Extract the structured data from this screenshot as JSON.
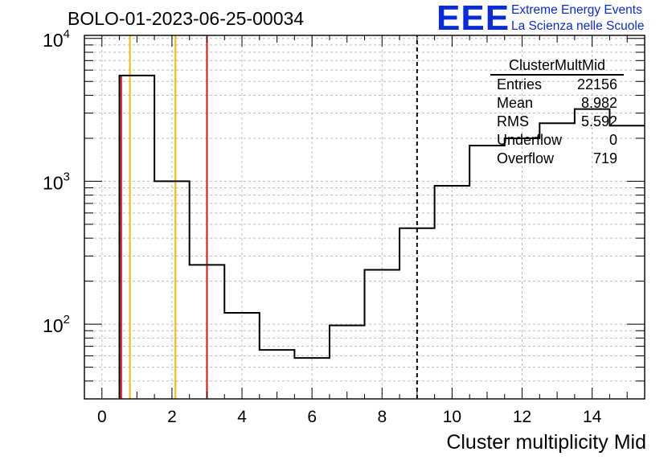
{
  "title": "BOLO-01-2023-06-25-00034",
  "logo": {
    "mark": "EEE",
    "line1": "Extreme Energy Events",
    "line2": "La Scienza nelle Scuole",
    "color": "#0a2bd8"
  },
  "stats": {
    "name": "ClusterMultMid",
    "rows": [
      {
        "label": "Entries",
        "value": "22156"
      },
      {
        "label": "Mean",
        "value": "8.982"
      },
      {
        "label": "RMS",
        "value": "5.592"
      },
      {
        "label": "Underflow",
        "value": "0"
      },
      {
        "label": "Overflow",
        "value": "719"
      }
    ]
  },
  "chart_data": {
    "type": "histogram",
    "title": "BOLO-01-2023-06-25-00034",
    "xlabel": "Cluster multiplicity Mid",
    "ylabel": "",
    "xlim": [
      -0.5,
      15.5
    ],
    "ylim": [
      30,
      10500
    ],
    "log_y": true,
    "grid": true,
    "x_ticks": [
      0,
      2,
      4,
      6,
      8,
      10,
      12,
      14
    ],
    "y_tick_labels": [
      {
        "value": 100,
        "base": "10",
        "exp": "2"
      },
      {
        "value": 1000,
        "base": "10",
        "exp": "3"
      },
      {
        "value": 10000,
        "base": "10",
        "exp": "4"
      }
    ],
    "bins": [
      {
        "lo": 0.5,
        "hi": 1.5,
        "value": 5500
      },
      {
        "lo": 1.5,
        "hi": 2.5,
        "value": 1000
      },
      {
        "lo": 2.5,
        "hi": 3.5,
        "value": 260
      },
      {
        "lo": 3.5,
        "hi": 4.5,
        "value": 120
      },
      {
        "lo": 4.5,
        "hi": 5.5,
        "value": 66
      },
      {
        "lo": 5.5,
        "hi": 6.5,
        "value": 58
      },
      {
        "lo": 6.5,
        "hi": 7.5,
        "value": 98
      },
      {
        "lo": 7.5,
        "hi": 8.5,
        "value": 240
      },
      {
        "lo": 8.5,
        "hi": 9.5,
        "value": 470
      },
      {
        "lo": 9.5,
        "hi": 10.5,
        "value": 930
      },
      {
        "lo": 10.5,
        "hi": 11.5,
        "value": 1780
      },
      {
        "lo": 11.5,
        "hi": 12.5,
        "value": 2000
      },
      {
        "lo": 12.5,
        "hi": 13.5,
        "value": 2550
      },
      {
        "lo": 13.5,
        "hi": 14.5,
        "value": 3200
      },
      {
        "lo": 14.5,
        "hi": 15.5,
        "value": 2450
      }
    ],
    "vertical_lines": [
      {
        "x": 0.55,
        "color": "#e0100f",
        "style": "solid",
        "ymax": 5500
      },
      {
        "x": 0.8,
        "color": "#f5b700",
        "style": "solid",
        "ymax": 10500
      },
      {
        "x": 2.1,
        "color": "#f5b700",
        "style": "solid",
        "ymax": 10500
      },
      {
        "x": 3.0,
        "color": "#e0100f",
        "style": "solid",
        "ymax": 10500
      },
      {
        "x": 9.0,
        "color": "#000000",
        "style": "dashed",
        "ymax": 10500
      }
    ],
    "colors": {
      "histogram": "#000000",
      "red": "#e0100f",
      "orange": "#f5b700",
      "grid": "#bdbdbd"
    }
  }
}
